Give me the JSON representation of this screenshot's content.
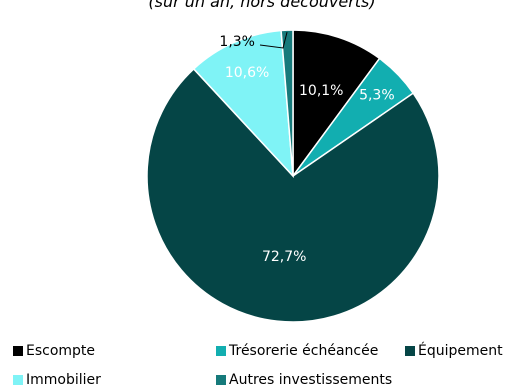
{
  "chart_data": {
    "type": "pie",
    "subtitle": "(sur un an, hors découverts)",
    "slices": [
      {
        "name": "Escompte",
        "value": 10.1,
        "label": "10,1%",
        "color": "#000000"
      },
      {
        "name": "Trésorerie échéancée",
        "value": 5.3,
        "label": "5,3%",
        "color": "#12AEB0"
      },
      {
        "name": "Équipement",
        "value": 72.7,
        "label": "72,7%",
        "color": "#054546"
      },
      {
        "name": "Immobilier",
        "value": 10.6,
        "label": "10,6%",
        "color": "#7FF3F6"
      },
      {
        "name": "Autres investissements",
        "value": 1.3,
        "label": "1,3%",
        "color": "#167A7B"
      }
    ],
    "legend_position": "bottom"
  }
}
